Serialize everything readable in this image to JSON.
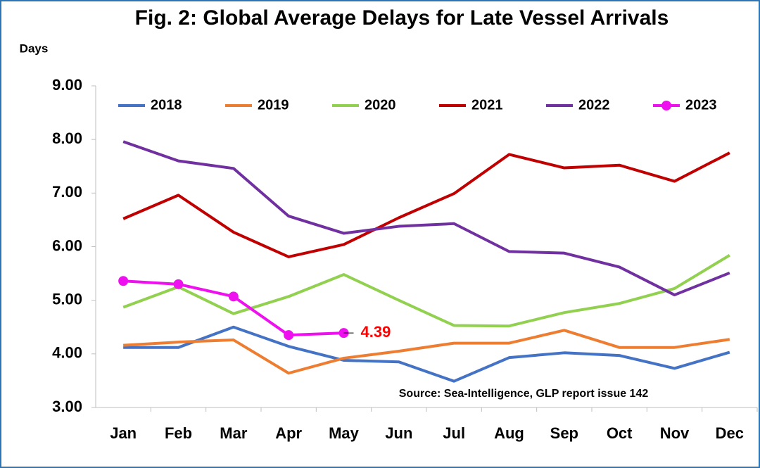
{
  "chart_data": {
    "type": "line",
    "title": "Fig. 2: Global Average Delays for Late Vessel Arrivals",
    "y_label": "Days",
    "categories": [
      "Jan",
      "Feb",
      "Mar",
      "Apr",
      "May",
      "Jun",
      "Jul",
      "Aug",
      "Sep",
      "Oct",
      "Nov",
      "Dec"
    ],
    "series": [
      {
        "name": "2018",
        "color": "#4472c4",
        "values": [
          4.12,
          4.12,
          4.5,
          4.14,
          3.88,
          3.85,
          3.49,
          3.93,
          4.02,
          3.97,
          3.73,
          4.03
        ]
      },
      {
        "name": "2019",
        "color": "#ed7d31",
        "values": [
          4.16,
          4.22,
          4.26,
          3.64,
          3.92,
          4.05,
          4.2,
          4.2,
          4.44,
          4.12,
          4.12,
          4.27
        ]
      },
      {
        "name": "2020",
        "color": "#92d050",
        "values": [
          4.87,
          5.25,
          4.75,
          5.07,
          5.48,
          5.0,
          4.53,
          4.52,
          4.77,
          4.94,
          5.22,
          5.84
        ]
      },
      {
        "name": "2021",
        "color": "#c00000",
        "values": [
          6.52,
          6.96,
          6.27,
          5.81,
          6.04,
          6.54,
          6.99,
          7.72,
          7.47,
          7.52,
          7.22,
          7.75
        ]
      },
      {
        "name": "2022",
        "color": "#7030a0",
        "values": [
          7.96,
          7.6,
          7.46,
          6.57,
          6.25,
          6.38,
          6.43,
          5.91,
          5.88,
          5.62,
          5.1,
          5.51
        ]
      },
      {
        "name": "2023",
        "color": "#ee10ee",
        "markers": true,
        "values": [
          5.36,
          5.3,
          5.07,
          4.35,
          4.39,
          null,
          null,
          null,
          null,
          null,
          null,
          null
        ]
      }
    ],
    "data_label": {
      "series": 5,
      "index": 4,
      "color": "#ff0000"
    },
    "ylim": [
      3,
      9
    ],
    "yticks": [
      {
        "value": 3,
        "label": "3.00"
      },
      {
        "value": 4,
        "label": "4.00"
      },
      {
        "value": 5,
        "label": "5.00"
      },
      {
        "value": 6,
        "label": "6.00"
      },
      {
        "value": 7,
        "label": "7.00"
      },
      {
        "value": 8,
        "label": "8.00"
      },
      {
        "value": 9,
        "label": "9.00"
      }
    ],
    "legend": "top",
    "source": "Source: Sea-Intelligence, GLP report issue 142"
  }
}
